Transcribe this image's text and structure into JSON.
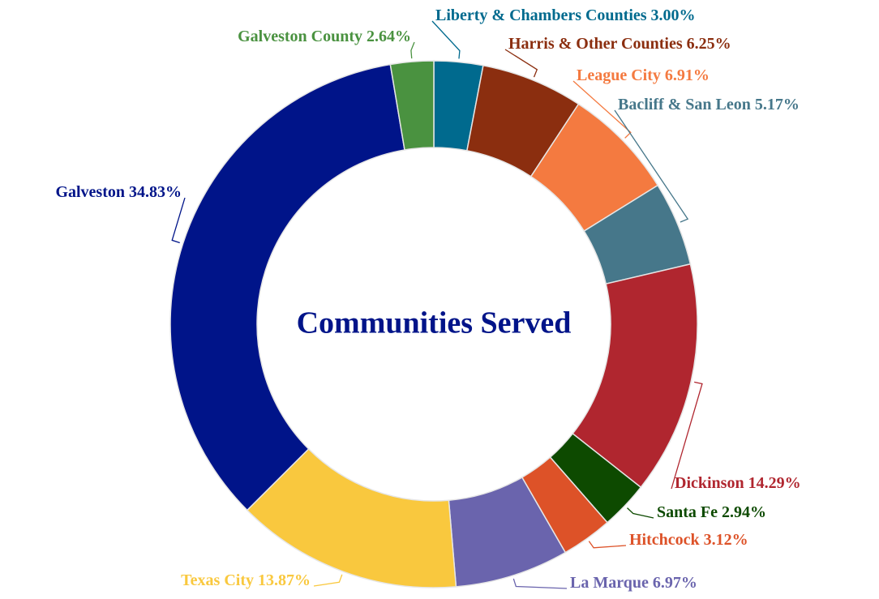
{
  "chart_data": {
    "type": "donut",
    "title": "Communities Served",
    "categories": [
      "Liberty & Chambers Counties",
      "Harris & Other Counties",
      "League City",
      "Bacliff & San Leon",
      "Dickinson",
      "Santa Fe",
      "Hitchcock",
      "La Marque",
      "Texas City",
      "Galveston",
      "Galveston County"
    ],
    "values": [
      3.0,
      6.25,
      6.91,
      5.17,
      14.29,
      2.94,
      3.12,
      6.97,
      13.87,
      34.83,
      2.64
    ],
    "value_labels": [
      "3.00%",
      "6.25%",
      "6.91%",
      "5.17%",
      "14.29%",
      "2.94%",
      "3.12%",
      "6.97%",
      "13.87%",
      "34.83%",
      "2.64%"
    ],
    "colors": [
      "#006a8e",
      "#8b2e0f",
      "#f47a40",
      "#46778a",
      "#b0262f",
      "#0d4a00",
      "#dd5228",
      "#6a64ad",
      "#f9c83e",
      "#001489",
      "#4a9240"
    ]
  }
}
